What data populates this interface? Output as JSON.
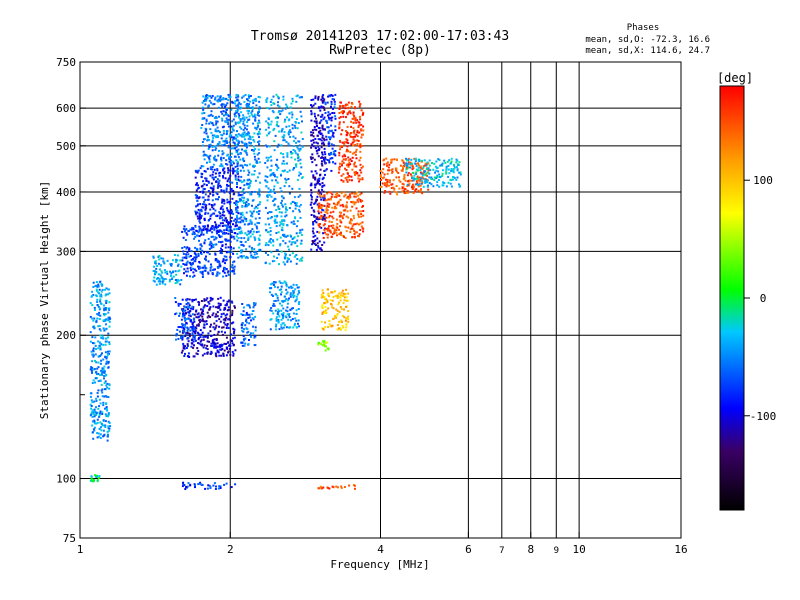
{
  "chart_data": {
    "type": "scatter",
    "title": "Tromsø 20141203 17:02:00-17:03:43",
    "subtitle": "RwPretec (8p)",
    "xlabel": "Frequency [MHz]",
    "ylabel": "Stationary phase Virtual Height [km]",
    "x_scale": "log",
    "y_scale": "log",
    "xlim": [
      1,
      16
    ],
    "ylim": [
      75,
      750
    ],
    "x_ticks": [
      1,
      2,
      4,
      6,
      8,
      10,
      16
    ],
    "x_minor_ticks": [
      7,
      9
    ],
    "y_ticks": [
      75,
      100,
      200,
      300,
      400,
      500,
      600,
      750
    ],
    "y_minor_ticks": [
      150
    ],
    "grid": true,
    "phases_box": {
      "title": "Phases",
      "line_o": "mean, sd,O: -72.3, 16.6",
      "line_x": "mean, sd,X: 114.6, 24.7"
    },
    "colorbar": {
      "label": "[deg]",
      "range": [
        -180,
        180
      ],
      "ticks": [
        100,
        0,
        -100
      ],
      "colormap": [
        "#000000",
        "#3a0066",
        "#0000ff",
        "#00c8ff",
        "#00ff00",
        "#ffff00",
        "#ff9900",
        "#ff0000"
      ]
    },
    "clusters": [
      {
        "f": [
          1.05,
          1.15
        ],
        "h": [
          120,
          260
        ],
        "phase": -45
      },
      {
        "f": [
          1.4,
          1.6
        ],
        "h": [
          255,
          295
        ],
        "phase": -40
      },
      {
        "f": [
          1.6,
          2.05
        ],
        "h": [
          265,
          340
        ],
        "phase": -72
      },
      {
        "f": [
          1.7,
          2.1
        ],
        "h": [
          330,
          450
        ],
        "phase": -85
      },
      {
        "f": [
          1.75,
          2.1
        ],
        "h": [
          450,
          640
        ],
        "phase": -55
      },
      {
        "f": [
          2.05,
          2.3
        ],
        "h": [
          290,
          640
        ],
        "phase": -45
      },
      {
        "f": [
          2.35,
          2.8
        ],
        "h": [
          280,
          640
        ],
        "phase": -40
      },
      {
        "f": [
          2.9,
          3.1
        ],
        "h": [
          300,
          640
        ],
        "phase": -105
      },
      {
        "f": [
          3.1,
          3.25
        ],
        "h": [
          440,
          640
        ],
        "phase": -80
      },
      {
        "f": [
          3.0,
          3.7
        ],
        "h": [
          320,
          400
        ],
        "phase": 150
      },
      {
        "f": [
          3.3,
          3.7
        ],
        "h": [
          420,
          620
        ],
        "phase": 160
      },
      {
        "f": [
          4.0,
          5.0
        ],
        "h": [
          395,
          470
        ],
        "phase": 150
      },
      {
        "f": [
          4.5,
          5.8
        ],
        "h": [
          410,
          470
        ],
        "phase": -30
      },
      {
        "f": [
          1.6,
          2.05
        ],
        "h": [
          180,
          240
        ],
        "phase": -105
      },
      {
        "f": [
          1.55,
          1.7
        ],
        "h": [
          195,
          240
        ],
        "phase": -70
      },
      {
        "f": [
          2.1,
          2.25
        ],
        "h": [
          190,
          235
        ],
        "phase": -60
      },
      {
        "f": [
          2.4,
          2.75
        ],
        "h": [
          205,
          260
        ],
        "phase": -45
      },
      {
        "f": [
          3.05,
          3.45
        ],
        "h": [
          205,
          250
        ],
        "phase": 100
      },
      {
        "f": [
          3.0,
          3.15
        ],
        "h": [
          185,
          195
        ],
        "phase": 40
      },
      {
        "f": [
          3.0,
          3.6
        ],
        "h": [
          95,
          97
        ],
        "phase": 150
      },
      {
        "f": [
          1.6,
          2.05
        ],
        "h": [
          95,
          98
        ],
        "phase": -80
      },
      {
        "f": [
          1.05,
          1.1
        ],
        "h": [
          98,
          102
        ],
        "phase": -10
      }
    ]
  }
}
